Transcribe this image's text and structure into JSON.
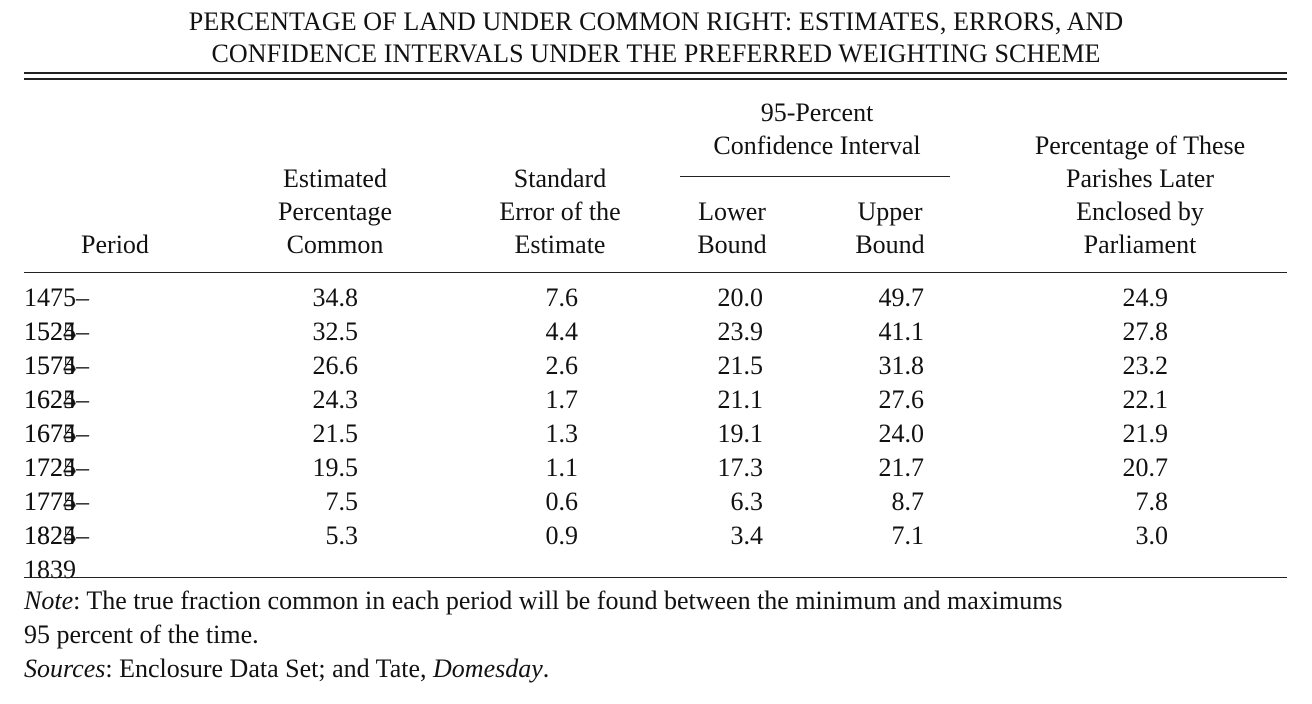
{
  "title_line1": "PERCENTAGE OF LAND UNDER COMMON RIGHT: ESTIMATES, ERRORS, AND",
  "title_line2": "CONFIDENCE INTERVALS UNDER THE PREFERRED WEIGHTING SCHEME",
  "headers": {
    "period": "Period",
    "estimated": [
      "Estimated",
      "Percentage",
      "Common"
    ],
    "std_error": [
      "Standard",
      "Error of the",
      "Estimate"
    ],
    "ci_group": [
      "95-Percent",
      "Confidence Interval"
    ],
    "lower": [
      "Lower",
      "Bound"
    ],
    "upper": [
      "Upper",
      "Bound"
    ],
    "parliament": [
      "Percentage of These",
      "Parishes Later",
      "Enclosed by",
      "Parliament"
    ]
  },
  "rows": [
    {
      "period": "1475–1524",
      "est": "34.8",
      "se": "7.6",
      "lower": "20.0",
      "upper": "49.7",
      "parl": "24.9"
    },
    {
      "period": "1525–1574",
      "est": "32.5",
      "se": "4.4",
      "lower": "23.9",
      "upper": "41.1",
      "parl": "27.8"
    },
    {
      "period": "1575–1624",
      "est": "26.6",
      "se": "2.6",
      "lower": "21.5",
      "upper": "31.8",
      "parl": "23.2"
    },
    {
      "period": "1625–1674",
      "est": "24.3",
      "se": "1.7",
      "lower": "21.1",
      "upper": "27.6",
      "parl": "22.1"
    },
    {
      "period": "1675–1724",
      "est": "21.5",
      "se": "1.3",
      "lower": "19.1",
      "upper": "24.0",
      "parl": "21.9"
    },
    {
      "period": "1725–1774",
      "est": "19.5",
      "se": "1.1",
      "lower": "17.3",
      "upper": "21.7",
      "parl": "20.7"
    },
    {
      "period": "1775–1824",
      "est": "7.5",
      "se": "0.6",
      "lower": "6.3",
      "upper": "8.7",
      "parl": "7.8"
    },
    {
      "period": "1825–1839",
      "est": "5.3",
      "se": "0.9",
      "lower": "3.4",
      "upper": "7.1",
      "parl": "3.0"
    }
  ],
  "note": {
    "label": "Note",
    "text": ": The true fraction common in each period will be found between the minimum and maximums",
    "text2": "95 percent of the time."
  },
  "sources": {
    "label": "Sources",
    "text": ": Enclosure Data Set; and Tate, ",
    "title": "Domesday",
    "end": "."
  }
}
